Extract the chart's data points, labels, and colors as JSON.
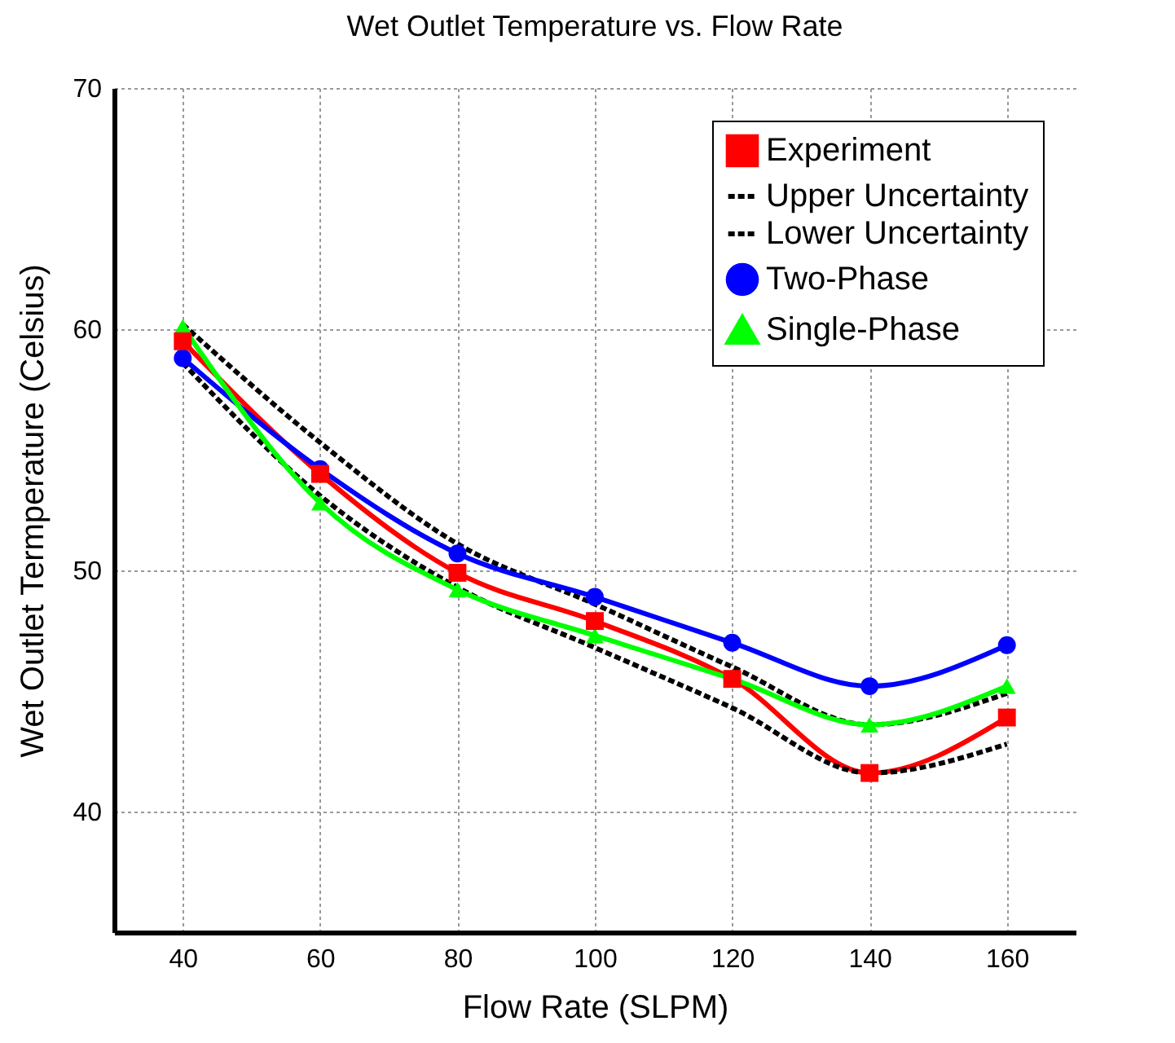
{
  "chart_data": {
    "type": "line",
    "title": "Wet Outlet Temperature vs. Flow Rate",
    "xlabel": "Flow Rate (SLPM)",
    "ylabel": "Wet Outlet Termperature (Celsius)",
    "x": [
      40,
      60,
      80,
      100,
      120,
      140,
      160
    ],
    "series": [
      {
        "name": "Experiment",
        "color": "#ff0000",
        "marker": "square",
        "line_style": "solid",
        "values": [
          59.5,
          54.0,
          49.9,
          47.9,
          45.5,
          41.6,
          43.9
        ]
      },
      {
        "name": "Upper Uncertainty",
        "color": "#000000",
        "marker": "none",
        "line_style": "dashed",
        "values": [
          60.2,
          55.3,
          51.1,
          48.6,
          46.0,
          43.6,
          44.9
        ]
      },
      {
        "name": "Lower Uncertainty",
        "color": "#000000",
        "marker": "none",
        "line_style": "dashed",
        "values": [
          58.6,
          53.1,
          49.3,
          46.8,
          44.3,
          41.6,
          42.8
        ]
      },
      {
        "name": "Two-Phase",
        "color": "#0000ff",
        "marker": "circle",
        "line_style": "solid",
        "values": [
          58.8,
          54.2,
          50.7,
          48.9,
          47.0,
          45.2,
          46.9
        ]
      },
      {
        "name": "Single-Phase",
        "color": "#00ff00",
        "marker": "triangle",
        "line_style": "solid",
        "values": [
          60.1,
          52.8,
          49.2,
          47.3,
          45.5,
          43.6,
          45.2
        ]
      }
    ],
    "xlim": [
      30,
      170
    ],
    "xticks": [
      40,
      60,
      80,
      100,
      120,
      140,
      160
    ],
    "ylim": [
      35,
      70
    ],
    "yticks": [
      40,
      50,
      60,
      70
    ],
    "grid": true,
    "legend": "top right"
  }
}
